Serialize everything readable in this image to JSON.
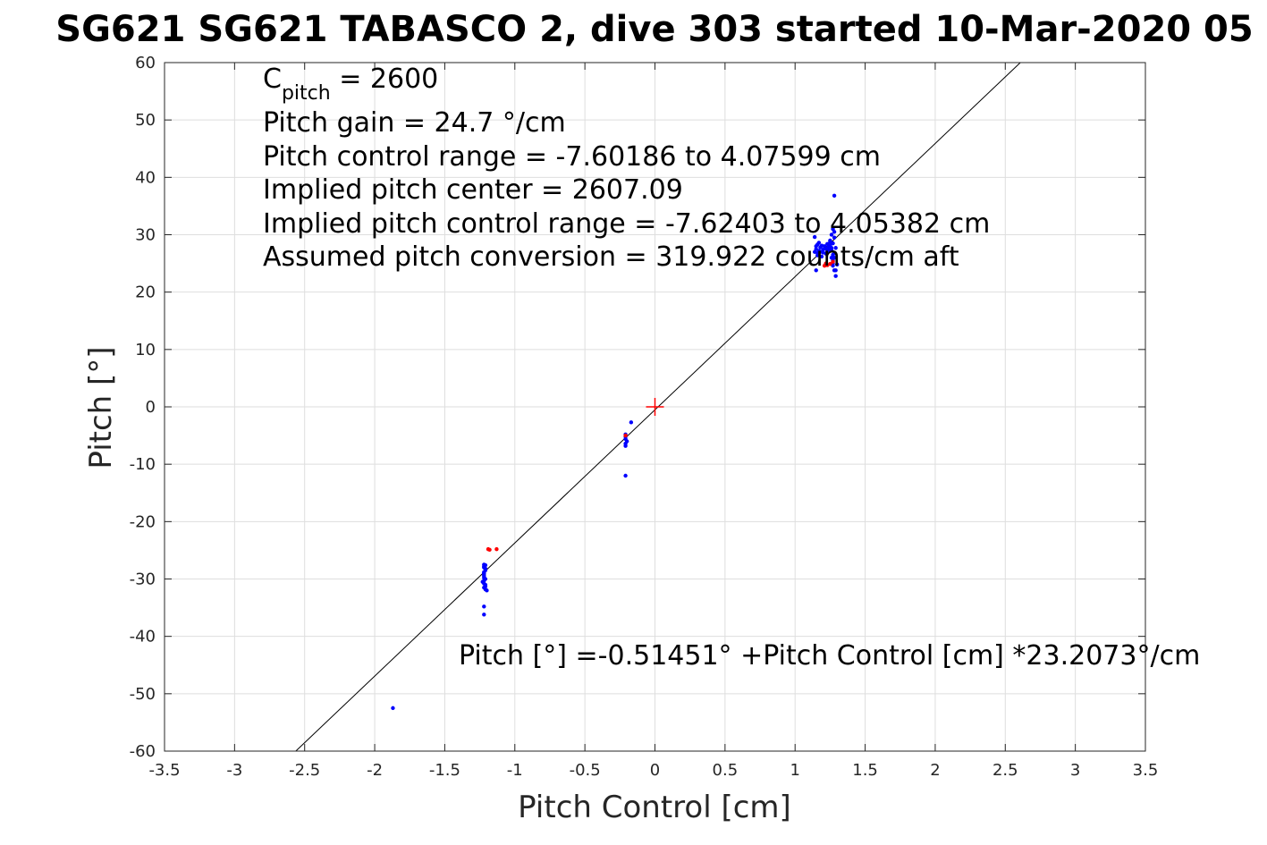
{
  "chart_data": {
    "type": "scatter",
    "title": "SG621 SG621 TABASCO 2, dive 303 started 10-Mar-2020 05",
    "xlabel": "Pitch Control [cm]",
    "ylabel": "Pitch [°]",
    "xlim": [
      -3.5,
      3.5
    ],
    "ylim": [
      -60,
      60
    ],
    "xticks": [
      -3.5,
      -3,
      -2.5,
      -2,
      -1.5,
      -1,
      -0.5,
      0,
      0.5,
      1,
      1.5,
      2,
      2.5,
      3,
      3.5
    ],
    "yticks": [
      -60,
      -50,
      -40,
      -30,
      -20,
      -10,
      0,
      10,
      20,
      30,
      40,
      50,
      60
    ],
    "xtick_labels": [
      "-3.5",
      "-3",
      "-2.5",
      "-2",
      "-1.5",
      "-1",
      "-0.5",
      "0",
      "0.5",
      "1",
      "1.5",
      "2",
      "2.5",
      "3",
      "3.5"
    ],
    "ytick_labels": [
      "-60",
      "-50",
      "-40",
      "-30",
      "-20",
      "-10",
      "0",
      "10",
      "20",
      "30",
      "40",
      "50",
      "60"
    ],
    "grid": true,
    "fit_line": {
      "intercept": -0.51451,
      "slope": 23.2073,
      "color": "#000000"
    },
    "center_marker": {
      "x": 0,
      "y": 0,
      "color": "#ff0000"
    },
    "annotations": {
      "cpitch_base": "C",
      "cpitch_sub": "pitch",
      "cpitch_value": " = 2600",
      "line2": "Pitch gain = 24.7 °/cm",
      "line3": "Pitch control range = -7.60186 to 4.07599 cm",
      "line4": "Implied pitch center = 2607.09",
      "line5": "Implied pitch control range = -7.62403 to 4.05382 cm",
      "line6": "Assumed pitch conversion = 319.922 counts/cm aft",
      "fit_text": "Pitch [°] =-0.51451° +Pitch Control [cm] *23.2073°/cm"
    },
    "series": [
      {
        "color": "#0000ff",
        "x": [
          -1.22,
          -1.22,
          -1.21,
          -1.22,
          -1.22,
          -1.21,
          -1.23,
          -1.21,
          -1.22,
          -1.2,
          -1.22,
          -1.21,
          -1.22,
          -1.22,
          -1.22,
          -1.22,
          -1.22,
          -1.21,
          -1.21,
          -1.21,
          -1.22,
          -1.22,
          -1.22,
          -0.21,
          -0.21,
          -0.21,
          -0.2,
          -0.21,
          -0.21,
          -0.17,
          -0.21,
          1.14,
          1.15,
          1.15,
          1.16,
          1.16,
          1.17,
          1.18,
          1.19,
          1.2,
          1.2,
          1.21,
          1.22,
          1.23,
          1.23,
          1.24,
          1.25,
          1.25,
          1.26,
          1.26,
          1.26,
          1.27,
          1.27,
          1.27,
          1.27,
          1.27,
          1.28,
          1.28,
          1.28,
          1.28,
          1.29,
          1.29,
          1.3,
          1.28,
          1.27,
          1.28,
          1.29,
          1.14,
          1.15,
          1.16,
          1.17,
          1.18,
          1.19,
          1.22,
          1.24,
          1.25,
          1.26,
          -1.87
        ],
        "y": [
          -27.5,
          -28.0,
          -28.5,
          -29.0,
          -29.5,
          -30.0,
          -30.5,
          -31.0,
          -31.5,
          -32.0,
          -27.8,
          -28.2,
          -28.8,
          -29.3,
          -29.8,
          -30.3,
          -30.8,
          -31.3,
          -31.8,
          -27.6,
          -29.0,
          -34.8,
          -36.2,
          -4.8,
          -5.2,
          -5.6,
          -6.0,
          -6.4,
          -6.8,
          -2.7,
          -12.0,
          27.0,
          28.0,
          27.5,
          26.8,
          28.3,
          27.2,
          27.8,
          28.1,
          27.4,
          26.9,
          28.0,
          27.6,
          28.4,
          27.1,
          27.9,
          28.2,
          29.0,
          27.3,
          27.7,
          30.0,
          28.5,
          31.0,
          26.5,
          24.6,
          25.0,
          29.5,
          30.5,
          26.0,
          23.8,
          23.8,
          22.8,
          24.8,
          36.8,
          25.5,
          26.8,
          27.7,
          29.6,
          23.8,
          26.4,
          28.6,
          27.0,
          26.2,
          26.7,
          27.3,
          28.8,
          26.0,
          -52.5
        ]
      },
      {
        "color": "#ff0000",
        "x": [
          -1.19,
          -1.18,
          -1.13,
          -0.21,
          1.22,
          1.23,
          1.25,
          1.21,
          1.27
        ],
        "y": [
          -24.8,
          -24.9,
          -24.8,
          -5.0,
          25.0,
          24.7,
          24.9,
          24.6,
          25.3
        ]
      }
    ]
  }
}
